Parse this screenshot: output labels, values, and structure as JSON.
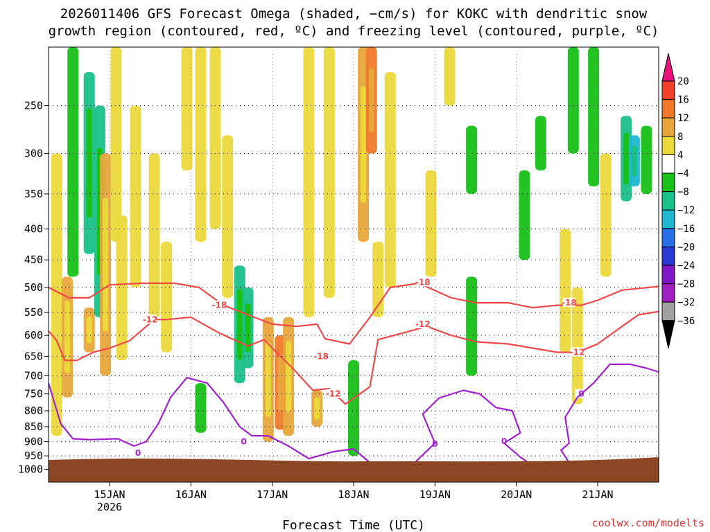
{
  "header": {
    "title_line1": "2026011406 GFS Forecast Omega (shaded, −cm/s) for KOKC with dendritic snow",
    "title_line2": "growth region (contoured, red, ºC) and freezing level (contoured, purple, ºC)"
  },
  "footer": {
    "xlabel": "Forecast Time (UTC)",
    "source": "coolwx.com/modelts"
  },
  "chart_data": {
    "type": "heatmap",
    "title": "2026011406 GFS Forecast Omega (shaded, −cm/s) for KOKC with dendritic snow growth region (contoured, red, ºC) and freezing level (contoured, purple, ºC)",
    "xlabel": "Forecast Time (UTC)",
    "ylabel": "",
    "x_range_days": [
      14.25,
      21.75
    ],
    "x_ticks": [
      {
        "day": 15,
        "label": "15JAN",
        "sub": "2026"
      },
      {
        "day": 16,
        "label": "16JAN",
        "sub": ""
      },
      {
        "day": 17,
        "label": "17JAN",
        "sub": ""
      },
      {
        "day": 18,
        "label": "18JAN",
        "sub": ""
      },
      {
        "day": 19,
        "label": "19JAN",
        "sub": ""
      },
      {
        "day": 20,
        "label": "20JAN",
        "sub": ""
      },
      {
        "day": 21,
        "label": "21JAN",
        "sub": ""
      }
    ],
    "y_range_hpa": [
      200,
      1050
    ],
    "y_scale": "log-pressure",
    "y_ticks": [
      250,
      300,
      350,
      400,
      450,
      500,
      550,
      600,
      650,
      700,
      750,
      800,
      850,
      900,
      950,
      1000
    ],
    "grid": true,
    "surface_fill_from_hpa": 965,
    "colorbar": {
      "labels": [
        "20",
        "16",
        "12",
        "8",
        "4",
        "−4",
        "−8",
        "−12",
        "−16",
        "−20",
        "−24",
        "−28",
        "−32",
        "−36"
      ],
      "colors": [
        "#e8137a",
        "#f0412c",
        "#f07a2a",
        "#e8a63c",
        "#ebd93c",
        "#ffffff",
        "#18c018",
        "#1ac08a",
        "#20b8d0",
        "#2870e8",
        "#2838d0",
        "#8018c8",
        "#a020c0",
        "#a0a0a0",
        "#000000"
      ]
    },
    "omega_shading": [
      {
        "d": 14.35,
        "p": [
          300,
          880
        ],
        "v": 6
      },
      {
        "d": 14.48,
        "p": [
          480,
          760
        ],
        "v": 9
      },
      {
        "d": 14.55,
        "p": [
          200,
          480
        ],
        "v": -6
      },
      {
        "d": 14.75,
        "p": [
          220,
          440
        ],
        "v": -9
      },
      {
        "d": 14.75,
        "p": [
          540,
          640
        ],
        "v": 9
      },
      {
        "d": 14.88,
        "p": [
          250,
          560
        ],
        "v": -8
      },
      {
        "d": 14.95,
        "p": [
          300,
          700
        ],
        "v": 10
      },
      {
        "d": 15.08,
        "p": [
          200,
          420
        ],
        "v": 6
      },
      {
        "d": 15.15,
        "p": [
          380,
          660
        ],
        "v": 7
      },
      {
        "d": 15.32,
        "p": [
          250,
          500
        ],
        "v": 6
      },
      {
        "d": 15.55,
        "p": [
          300,
          560
        ],
        "v": 5
      },
      {
        "d": 15.7,
        "p": [
          420,
          640
        ],
        "v": 5
      },
      {
        "d": 15.95,
        "p": [
          200,
          320
        ],
        "v": 6
      },
      {
        "d": 16.12,
        "p": [
          200,
          420
        ],
        "v": 5
      },
      {
        "d": 16.12,
        "p": [
          720,
          870
        ],
        "v": -6
      },
      {
        "d": 16.3,
        "p": [
          200,
          400
        ],
        "v": 6
      },
      {
        "d": 16.45,
        "p": [
          280,
          520
        ],
        "v": 5
      },
      {
        "d": 16.6,
        "p": [
          460,
          720
        ],
        "v": -8
      },
      {
        "d": 16.7,
        "p": [
          500,
          680
        ],
        "v": -10
      },
      {
        "d": 16.95,
        "p": [
          560,
          900
        ],
        "v": 9
      },
      {
        "d": 17.1,
        "p": [
          600,
          860
        ],
        "v": 14
      },
      {
        "d": 17.2,
        "p": [
          560,
          880
        ],
        "v": 8
      },
      {
        "d": 17.45,
        "p": [
          200,
          560
        ],
        "v": 5
      },
      {
        "d": 17.55,
        "p": [
          740,
          850
        ],
        "v": 10
      },
      {
        "d": 17.7,
        "p": [
          200,
          520
        ],
        "v": 5
      },
      {
        "d": 18.0,
        "p": [
          660,
          950
        ],
        "v": -7
      },
      {
        "d": 18.12,
        "p": [
          200,
          420
        ],
        "v": 9
      },
      {
        "d": 18.22,
        "p": [
          200,
          300
        ],
        "v": 14
      },
      {
        "d": 18.3,
        "p": [
          420,
          560
        ],
        "v": 6
      },
      {
        "d": 18.45,
        "p": [
          220,
          500
        ],
        "v": 5
      },
      {
        "d": 18.95,
        "p": [
          320,
          480
        ],
        "v": 6
      },
      {
        "d": 19.18,
        "p": [
          200,
          250
        ],
        "v": 5
      },
      {
        "d": 19.45,
        "p": [
          270,
          350
        ],
        "v": -6
      },
      {
        "d": 19.45,
        "p": [
          480,
          700
        ],
        "v": -6
      },
      {
        "d": 20.1,
        "p": [
          320,
          450
        ],
        "v": -6
      },
      {
        "d": 20.3,
        "p": [
          260,
          320
        ],
        "v": -6
      },
      {
        "d": 20.6,
        "p": [
          400,
          640
        ],
        "v": 5
      },
      {
        "d": 20.7,
        "p": [
          200,
          300
        ],
        "v": -7
      },
      {
        "d": 20.75,
        "p": [
          500,
          780
        ],
        "v": 7
      },
      {
        "d": 20.95,
        "p": [
          200,
          340
        ],
        "v": -6
      },
      {
        "d": 21.1,
        "p": [
          300,
          480
        ],
        "v": 5
      },
      {
        "d": 21.35,
        "p": [
          260,
          360
        ],
        "v": -9
      },
      {
        "d": 21.45,
        "p": [
          280,
          340
        ],
        "v": -14
      },
      {
        "d": 21.6,
        "p": [
          270,
          350
        ],
        "v": -7
      }
    ],
    "series": [
      {
        "name": "-18",
        "color": "#f04848",
        "label_positions": [
          [
            16.35,
            535
          ],
          [
            18.85,
            490
          ],
          [
            17.6,
            650
          ],
          [
            20.65,
            530
          ]
        ],
        "points": [
          [
            14.25,
            500
          ],
          [
            14.5,
            520
          ],
          [
            14.75,
            520
          ],
          [
            15.0,
            495
          ],
          [
            15.4,
            492
          ],
          [
            15.8,
            492
          ],
          [
            16.1,
            500
          ],
          [
            16.4,
            535
          ],
          [
            16.7,
            555
          ],
          [
            17.0,
            575
          ],
          [
            17.3,
            580
          ],
          [
            17.55,
            575
          ],
          [
            17.65,
            608
          ],
          [
            17.95,
            620
          ],
          [
            18.2,
            560
          ],
          [
            18.45,
            500
          ],
          [
            18.8,
            492
          ],
          [
            19.2,
            520
          ],
          [
            19.5,
            530
          ],
          [
            19.9,
            530
          ],
          [
            20.2,
            540
          ],
          [
            20.5,
            535
          ],
          [
            20.8,
            535
          ],
          [
            21.0,
            525
          ],
          [
            21.3,
            505
          ],
          [
            21.75,
            498
          ]
        ]
      },
      {
        "name": "-12",
        "color": "#f04848",
        "label_positions": [
          [
            15.5,
            565
          ],
          [
            18.85,
            575
          ],
          [
            17.75,
            750
          ],
          [
            20.75,
            640
          ]
        ],
        "points": [
          [
            14.25,
            590
          ],
          [
            14.35,
            612
          ],
          [
            14.45,
            660
          ],
          [
            14.6,
            660
          ],
          [
            14.8,
            640
          ],
          [
            15.0,
            630
          ],
          [
            15.25,
            612
          ],
          [
            15.55,
            565
          ],
          [
            15.7,
            565
          ],
          [
            16.0,
            560
          ],
          [
            16.35,
            595
          ],
          [
            16.7,
            625
          ],
          [
            16.9,
            610
          ],
          [
            17.05,
            640
          ],
          [
            17.25,
            680
          ],
          [
            17.5,
            740
          ],
          [
            17.7,
            735
          ],
          [
            17.9,
            780
          ],
          [
            18.2,
            730
          ],
          [
            18.3,
            610
          ],
          [
            18.6,
            595
          ],
          [
            18.9,
            580
          ],
          [
            19.2,
            600
          ],
          [
            19.5,
            615
          ],
          [
            19.9,
            620
          ],
          [
            20.2,
            630
          ],
          [
            20.5,
            640
          ],
          [
            20.75,
            640
          ],
          [
            21.0,
            620
          ],
          [
            21.3,
            580
          ],
          [
            21.5,
            555
          ],
          [
            21.75,
            548
          ]
        ]
      },
      {
        "name": "0",
        "color": "#a020d0",
        "label_positions": [
          [
            15.35,
            940
          ],
          [
            16.65,
            900
          ],
          [
            19.0,
            908
          ],
          [
            19.85,
            898
          ],
          [
            20.8,
            750
          ]
        ],
        "points": [
          [
            14.25,
            720
          ],
          [
            14.4,
            840
          ],
          [
            14.55,
            890
          ],
          [
            14.75,
            893
          ],
          [
            15.1,
            890
          ],
          [
            15.3,
            915
          ],
          [
            15.45,
            900
          ],
          [
            15.6,
            840
          ],
          [
            15.75,
            760
          ],
          [
            15.95,
            705
          ],
          [
            16.2,
            720
          ],
          [
            16.4,
            775
          ],
          [
            16.6,
            850
          ],
          [
            16.75,
            880
          ],
          [
            16.95,
            880
          ],
          [
            17.2,
            915
          ],
          [
            17.45,
            960
          ],
          [
            17.75,
            935
          ],
          [
            18.0,
            925
          ],
          [
            18.2,
            975
          ]
        ]
      },
      {
        "name": "0b",
        "color": "#a020d0",
        "label_positions": [],
        "points": [
          [
            18.75,
            975
          ],
          [
            19.0,
            905
          ],
          [
            18.85,
            810
          ],
          [
            19.05,
            762
          ],
          [
            19.35,
            740
          ],
          [
            19.55,
            750
          ],
          [
            19.75,
            790
          ],
          [
            19.95,
            800
          ],
          [
            20.05,
            870
          ],
          [
            19.85,
            905
          ],
          [
            20.05,
            955
          ],
          [
            20.15,
            975
          ]
        ]
      },
      {
        "name": "0c",
        "color": "#a020d0",
        "label_positions": [],
        "points": [
          [
            20.65,
            975
          ],
          [
            20.55,
            930
          ],
          [
            20.65,
            905
          ],
          [
            20.6,
            820
          ],
          [
            20.75,
            760
          ],
          [
            20.95,
            720
          ],
          [
            21.15,
            670
          ],
          [
            21.4,
            670
          ],
          [
            21.6,
            680
          ],
          [
            21.75,
            690
          ]
        ]
      }
    ]
  }
}
